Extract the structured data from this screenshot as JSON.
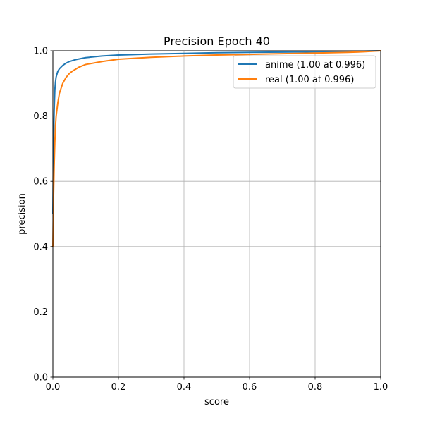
{
  "chart_data": {
    "type": "line",
    "title": "Precision Epoch 40",
    "xlabel": "score",
    "ylabel": "precision",
    "xlim": [
      0,
      1
    ],
    "ylim": [
      0,
      1
    ],
    "xticks": [
      "0.0",
      "0.2",
      "0.4",
      "0.6",
      "0.8",
      "1.0"
    ],
    "yticks": [
      "0.0",
      "0.2",
      "0.4",
      "0.6",
      "0.8",
      "1.0"
    ],
    "grid": true,
    "legend_position": "top-right",
    "series": [
      {
        "name": "anime (1.00 at 0.996)",
        "color": "#1f77b4",
        "x": [
          0.0,
          0.002,
          0.004,
          0.006,
          0.008,
          0.01,
          0.015,
          0.02,
          0.03,
          0.04,
          0.05,
          0.07,
          0.1,
          0.15,
          0.2,
          0.3,
          0.4,
          0.5,
          0.6,
          0.7,
          0.8,
          0.9,
          0.95,
          1.0
        ],
        "y": [
          0.5,
          0.72,
          0.82,
          0.88,
          0.905,
          0.92,
          0.937,
          0.945,
          0.955,
          0.962,
          0.967,
          0.973,
          0.979,
          0.984,
          0.987,
          0.99,
          0.992,
          0.994,
          0.995,
          0.996,
          0.997,
          0.998,
          0.999,
          1.0
        ]
      },
      {
        "name": "real (1.00 at 0.996)",
        "color": "#ff7f0e",
        "x": [
          0.0,
          0.002,
          0.004,
          0.006,
          0.008,
          0.01,
          0.015,
          0.02,
          0.03,
          0.04,
          0.05,
          0.06,
          0.08,
          0.1,
          0.15,
          0.2,
          0.3,
          0.4,
          0.5,
          0.6,
          0.7,
          0.8,
          0.9,
          0.95,
          1.0
        ],
        "y": [
          0.4,
          0.55,
          0.65,
          0.72,
          0.77,
          0.8,
          0.84,
          0.87,
          0.9,
          0.918,
          0.93,
          0.938,
          0.95,
          0.958,
          0.967,
          0.974,
          0.98,
          0.984,
          0.987,
          0.989,
          0.991,
          0.993,
          0.995,
          0.997,
          1.0
        ]
      }
    ]
  }
}
